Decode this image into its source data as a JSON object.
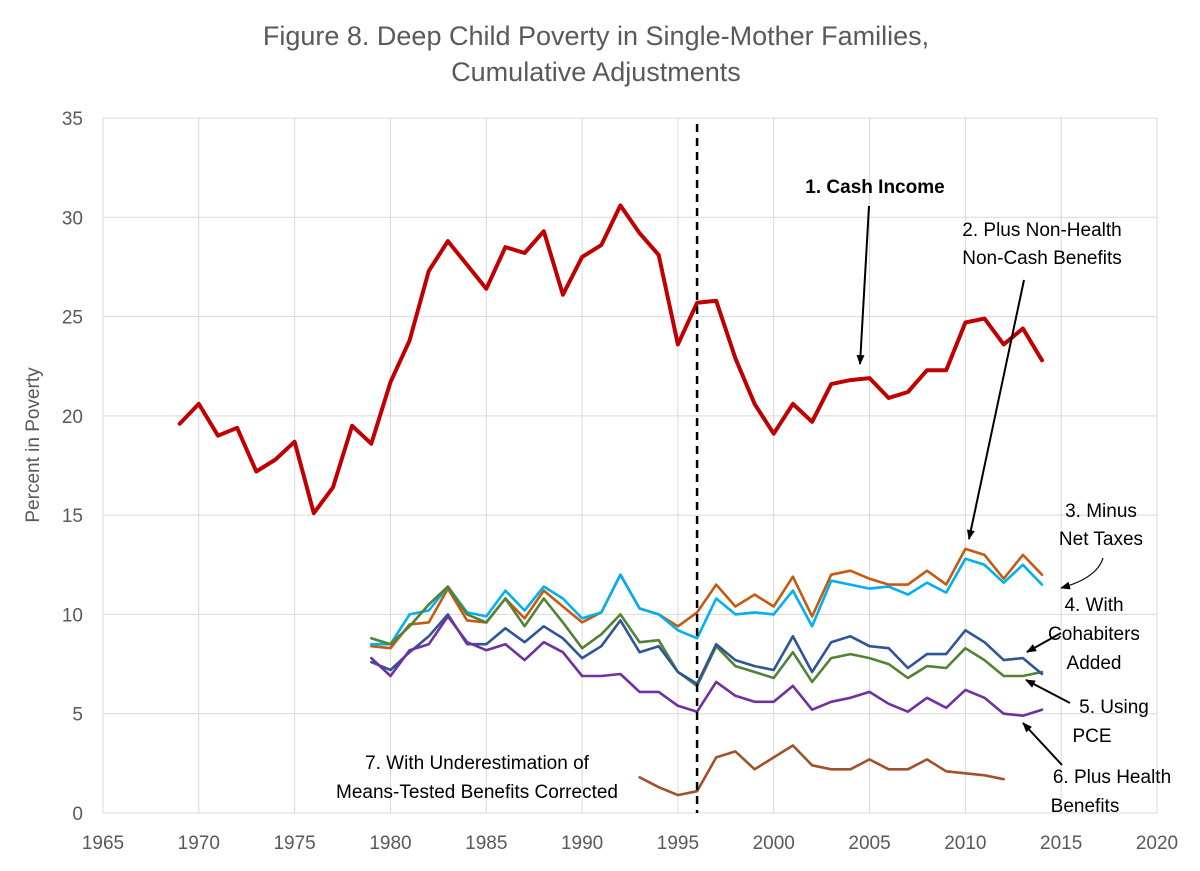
{
  "chart_data": {
    "type": "line",
    "title": [
      "Figure 8. Deep Child Poverty in Single-Mother Families,",
      "Cumulative Adjustments"
    ],
    "xlabel": "",
    "ylabel": "Percent in Poverty",
    "xlim": [
      1965,
      2020
    ],
    "ylim": [
      0,
      35
    ],
    "xticks": [
      1965,
      1970,
      1975,
      1980,
      1985,
      1990,
      1995,
      2000,
      2005,
      2010,
      2015,
      2020
    ],
    "yticks": [
      0,
      5,
      10,
      15,
      20,
      25,
      30,
      35
    ],
    "grid": true,
    "reference_line": {
      "x": 1996,
      "style": "dashed",
      "color": "#000000"
    },
    "series": [
      {
        "color": "#c00000",
        "x": [
          1969,
          1970,
          1971,
          1972,
          1973,
          1974,
          1975,
          1976,
          1977,
          1978,
          1979,
          1980,
          1981,
          1982,
          1983,
          1984,
          1985,
          1986,
          1987,
          1988,
          1989,
          1990,
          1991,
          1992,
          1993,
          1994,
          1995,
          1996,
          1997,
          1998,
          1999,
          2000,
          2001,
          2002,
          2003,
          2004,
          2005,
          2006,
          2007,
          2008,
          2009,
          2010,
          2011,
          2012,
          2013,
          2014
        ],
        "values": [
          19.6,
          20.6,
          19.0,
          19.4,
          17.2,
          17.8,
          18.7,
          15.1,
          16.4,
          19.5,
          18.6,
          21.7,
          23.8,
          27.3,
          28.8,
          27.6,
          26.4,
          28.5,
          28.2,
          29.3,
          26.1,
          28.0,
          28.6,
          30.6,
          29.2,
          28.1,
          23.6,
          25.7,
          25.8,
          22.9,
          20.6,
          19.1,
          20.6,
          19.7,
          21.6,
          21.8,
          21.9,
          20.9,
          21.2,
          22.3,
          22.3,
          24.7,
          24.9,
          23.6,
          24.4,
          22.8
        ]
      },
      {
        "color": "#c55a11",
        "x": [
          1979,
          1980,
          1981,
          1982,
          1983,
          1984,
          1985,
          1986,
          1987,
          1988,
          1989,
          1990,
          1991,
          1992,
          1993,
          1994,
          1995,
          1996,
          1997,
          1998,
          1999,
          2000,
          2001,
          2002,
          2003,
          2004,
          2005,
          2006,
          2007,
          2008,
          2009,
          2010,
          2011,
          2012,
          2013,
          2014
        ],
        "values": [
          8.4,
          8.3,
          9.5,
          9.6,
          11.3,
          9.7,
          9.6,
          10.8,
          9.8,
          11.2,
          10.4,
          9.6,
          10.1,
          12.0,
          10.3,
          10.0,
          9.4,
          10.1,
          11.5,
          10.4,
          11.0,
          10.4,
          11.9,
          9.9,
          12.0,
          12.2,
          11.8,
          11.5,
          11.5,
          12.2,
          11.5,
          13.3,
          13.0,
          11.8,
          13.0,
          12.0
        ]
      },
      {
        "color": "#00b0f0",
        "x": [
          1979,
          1980,
          1981,
          1982,
          1983,
          1984,
          1985,
          1986,
          1987,
          1988,
          1989,
          1990,
          1991,
          1992,
          1993,
          1994,
          1995,
          1996,
          1997,
          1998,
          1999,
          2000,
          2001,
          2002,
          2003,
          2004,
          2005,
          2006,
          2007,
          2008,
          2009,
          2010,
          2011,
          2012,
          2013,
          2014
        ],
        "values": [
          8.5,
          8.5,
          10.0,
          10.2,
          11.4,
          10.1,
          9.9,
          11.2,
          10.2,
          11.4,
          10.8,
          9.8,
          10.1,
          12.0,
          10.3,
          10.0,
          9.2,
          8.8,
          10.8,
          10.0,
          10.1,
          10.0,
          11.2,
          9.4,
          11.7,
          11.5,
          11.3,
          11.4,
          11.0,
          11.6,
          11.1,
          12.8,
          12.5,
          11.6,
          12.5,
          11.5
        ]
      },
      {
        "color": "#548235",
        "x": [
          1979,
          1980,
          1981,
          1982,
          1983,
          1984,
          1985,
          1986,
          1987,
          1988,
          1989,
          1990,
          1991,
          1992,
          1993,
          1994,
          1995,
          1996,
          1997,
          1998,
          1999,
          2000,
          2001,
          2002,
          2003,
          2004,
          2005,
          2006,
          2007,
          2008,
          2009,
          2010,
          2011,
          2012,
          2013,
          2014
        ],
        "values": [
          8.8,
          8.5,
          9.4,
          10.5,
          11.4,
          10.0,
          9.6,
          10.8,
          9.4,
          10.8,
          9.6,
          8.3,
          9.0,
          10.0,
          8.6,
          8.7,
          7.1,
          6.4,
          8.4,
          7.4,
          7.1,
          6.8,
          8.1,
          6.6,
          7.8,
          8.0,
          7.8,
          7.5,
          6.8,
          7.4,
          7.3,
          8.3,
          7.7,
          6.9,
          6.9,
          7.1
        ]
      },
      {
        "color": "#2f5597",
        "x": [
          1979,
          1980,
          1981,
          1982,
          1983,
          1984,
          1985,
          1986,
          1987,
          1988,
          1989,
          1990,
          1991,
          1992,
          1993,
          1994,
          1995,
          1996,
          1997,
          1998,
          1999,
          2000,
          2001,
          2002,
          2003,
          2004,
          2005,
          2006,
          2007,
          2008,
          2009,
          2010,
          2011,
          2012,
          2013,
          2014
        ],
        "values": [
          7.6,
          7.2,
          8.1,
          8.9,
          10.0,
          8.5,
          8.5,
          9.3,
          8.6,
          9.4,
          8.8,
          7.8,
          8.4,
          9.7,
          8.1,
          8.4,
          7.1,
          6.5,
          8.5,
          7.7,
          7.4,
          7.2,
          8.9,
          7.1,
          8.6,
          8.9,
          8.4,
          8.3,
          7.3,
          8.0,
          8.0,
          9.2,
          8.6,
          7.7,
          7.8,
          7.0
        ]
      },
      {
        "color": "#7030a0",
        "x": [
          1979,
          1980,
          1981,
          1982,
          1983,
          1984,
          1985,
          1986,
          1987,
          1988,
          1989,
          1990,
          1991,
          1992,
          1993,
          1994,
          1995,
          1996,
          1997,
          1998,
          1999,
          2000,
          2001,
          2002,
          2003,
          2004,
          2005,
          2006,
          2007,
          2008,
          2009,
          2010,
          2011,
          2012,
          2013,
          2014
        ],
        "values": [
          7.8,
          6.9,
          8.2,
          8.5,
          9.9,
          8.6,
          8.2,
          8.5,
          7.7,
          8.6,
          8.1,
          6.9,
          6.9,
          7.0,
          6.1,
          6.1,
          5.4,
          5.1,
          6.6,
          5.9,
          5.6,
          5.6,
          6.4,
          5.2,
          5.6,
          5.8,
          6.1,
          5.5,
          5.1,
          5.8,
          5.3,
          6.2,
          5.8,
          5.0,
          4.9,
          5.2
        ]
      },
      {
        "color": "#a0522d",
        "x": [
          1993,
          1994,
          1995,
          1996,
          1997,
          1998,
          1999,
          2000,
          2001,
          2002,
          2003,
          2004,
          2005,
          2006,
          2007,
          2008,
          2009,
          2010,
          2011,
          2012
        ],
        "values": [
          1.8,
          1.3,
          0.9,
          1.1,
          2.8,
          3.1,
          2.2,
          2.8,
          3.4,
          2.4,
          2.2,
          2.2,
          2.7,
          2.2,
          2.2,
          2.7,
          2.1,
          2.0,
          1.9,
          1.7
        ]
      }
    ],
    "annotations": [
      {
        "id": "a1",
        "lines": [
          "1. Cash Income"
        ],
        "bold": true
      },
      {
        "id": "a2",
        "lines": [
          "2. Plus Non-Health",
          "Non-Cash Benefits"
        ]
      },
      {
        "id": "a3",
        "lines": [
          "3. Minus",
          "Net Taxes"
        ]
      },
      {
        "id": "a4",
        "lines": [
          "4. With",
          "Cohabiters",
          "Added"
        ]
      },
      {
        "id": "a5",
        "lines": [
          "5. Using",
          "PCE"
        ]
      },
      {
        "id": "a6",
        "lines": [
          "6. Plus Health",
          "Benefits"
        ]
      },
      {
        "id": "a7",
        "lines": [
          "7. With Underestimation of",
          "Means-Tested Benefits Corrected"
        ]
      }
    ]
  }
}
